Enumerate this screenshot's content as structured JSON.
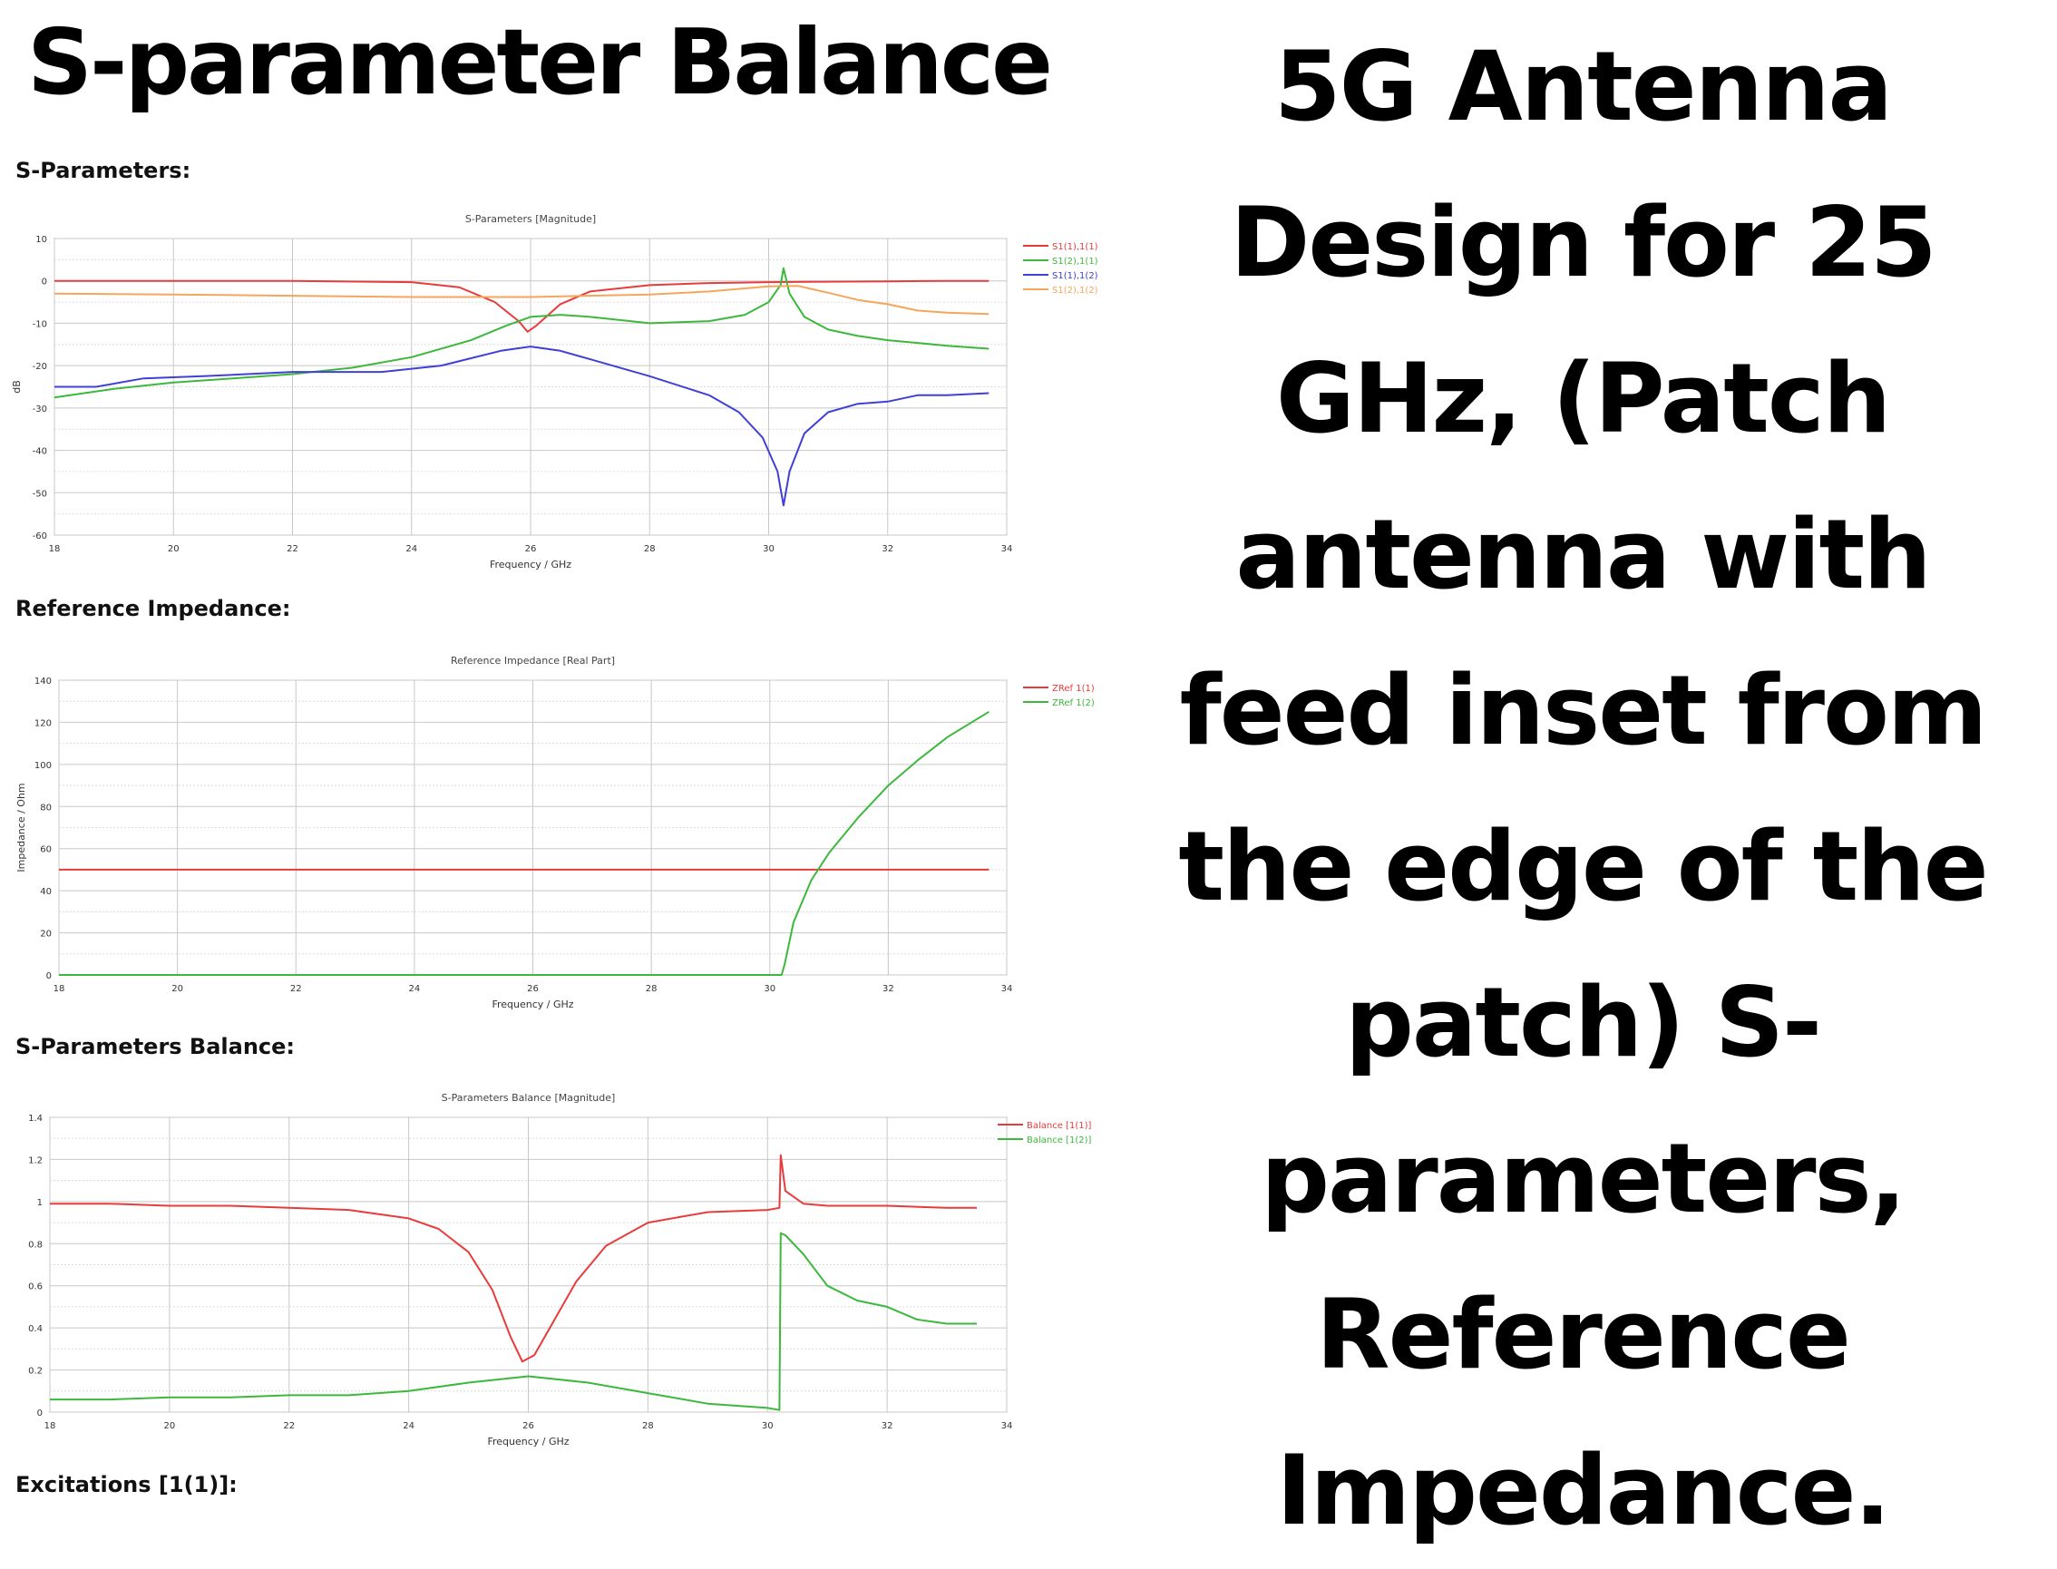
{
  "headline_left": "S-parameter Balance",
  "headline_right": "5G Antenna Design for 25 GHz, (Patch antenna with feed inset from the edge of the patch) S-parameters, Reference Impedance.",
  "sections": {
    "sparams": "S-Parameters:",
    "refimp": "Reference Impedance:",
    "balance": "S-Parameters Balance:",
    "excitations": "Excitations [1(1)]:"
  },
  "chart_data": [
    {
      "type": "line",
      "title": "S-Parameters [Magnitude]",
      "xlabel": "Frequency / GHz",
      "ylabel": "dB",
      "xlim": [
        18,
        34
      ],
      "ylim": [
        -60,
        10
      ],
      "xticks": [
        18,
        20,
        22,
        24,
        26,
        28,
        30,
        32,
        34
      ],
      "yticks": [
        10,
        0,
        -10,
        -20,
        -30,
        -40,
        -50,
        -60
      ],
      "grid": true,
      "legend": "top-right",
      "series": [
        {
          "name": "S1(1),1(1)",
          "color": "#e83c3c",
          "x": [
            18,
            20,
            22,
            24,
            24.8,
            25.4,
            25.8,
            25.95,
            26.1,
            26.5,
            27,
            28,
            29,
            30,
            31,
            32,
            33,
            33.7
          ],
          "values": [
            0,
            0,
            0,
            -0.3,
            -1.5,
            -5,
            -9.5,
            -12,
            -10.5,
            -5.5,
            -2.5,
            -1,
            -0.5,
            -0.3,
            -0.2,
            -0.1,
            0,
            0
          ]
        },
        {
          "name": "S1(2),1(1)",
          "color": "#3cb83c",
          "x": [
            18,
            19,
            20,
            21,
            22,
            23,
            24,
            25,
            25.6,
            26,
            26.5,
            27,
            28,
            29,
            29.6,
            30,
            30.2,
            30.25,
            30.35,
            30.6,
            31,
            31.5,
            32,
            33,
            33.7
          ],
          "values": [
            -27.5,
            -25.5,
            -24,
            -23,
            -22,
            -20.5,
            -18,
            -14,
            -10.5,
            -8.5,
            -8,
            -8.5,
            -10,
            -9.5,
            -8,
            -5,
            -1,
            3,
            -3,
            -8.5,
            -11.5,
            -13,
            -14,
            -15.3,
            -16
          ]
        },
        {
          "name": "S1(1),1(2)",
          "color": "#4040d8",
          "x": [
            18,
            18.7,
            19.5,
            20.5,
            22,
            23.5,
            24.5,
            25.5,
            26,
            26.5,
            27,
            28,
            29,
            29.5,
            29.9,
            30.15,
            30.25,
            30.35,
            30.6,
            31,
            31.5,
            32,
            32.5,
            33,
            33.7
          ],
          "values": [
            -25,
            -25,
            -23,
            -22.5,
            -21.5,
            -21.5,
            -20,
            -16.5,
            -15.5,
            -16.5,
            -18.5,
            -22.5,
            -27,
            -31,
            -37,
            -45,
            -53,
            -45,
            -36,
            -31,
            -29,
            -28.5,
            -27,
            -27,
            -26.5
          ]
        },
        {
          "name": "S1(2),1(2)",
          "color": "#f5a65a",
          "x": [
            18,
            20,
            22,
            24,
            26,
            28,
            29,
            30,
            30.5,
            31,
            31.5,
            32,
            32.5,
            33,
            33.7
          ],
          "values": [
            -3,
            -3.2,
            -3.5,
            -3.8,
            -3.8,
            -3.2,
            -2.5,
            -1.3,
            -1.2,
            -2.8,
            -4.5,
            -5.5,
            -7,
            -7.5,
            -7.8
          ]
        }
      ]
    },
    {
      "type": "line",
      "title": "Reference Impedance [Real Part]",
      "xlabel": "Frequency / GHz",
      "ylabel": "Impedance / Ohm",
      "xlim": [
        18,
        34
      ],
      "ylim": [
        0,
        140
      ],
      "xticks": [
        18,
        20,
        22,
        24,
        26,
        28,
        30,
        32,
        34
      ],
      "yticks": [
        140,
        120,
        100,
        80,
        60,
        40,
        20,
        0
      ],
      "grid": true,
      "legend": "top-right",
      "series": [
        {
          "name": "ZRef 1(1)",
          "color": "#e83c3c",
          "x": [
            18,
            33.7
          ],
          "values": [
            50,
            50
          ]
        },
        {
          "name": "ZRef 1(2)",
          "color": "#3cb83c",
          "x": [
            18,
            30.2,
            30.25,
            30.4,
            30.7,
            31,
            31.5,
            32,
            32.5,
            33,
            33.7
          ],
          "values": [
            0,
            0,
            5,
            25,
            45,
            58,
            75,
            90,
            102,
            113,
            125
          ]
        }
      ]
    },
    {
      "type": "line",
      "title": "S-Parameters Balance [Magnitude]",
      "xlabel": "Frequency / GHz",
      "ylabel": "",
      "xlim": [
        18,
        34
      ],
      "ylim": [
        0,
        1.4
      ],
      "xticks": [
        18,
        20,
        22,
        24,
        26,
        28,
        30,
        32,
        34
      ],
      "yticks": [
        1.4,
        1.2,
        1,
        0.8,
        0.6,
        0.4,
        0.2,
        0
      ],
      "grid": true,
      "legend": "top-right",
      "series": [
        {
          "name": "Balance [1(1)]",
          "color": "#e83c3c",
          "x": [
            18,
            19,
            20,
            21,
            22,
            23,
            24,
            24.5,
            25,
            25.4,
            25.7,
            25.9,
            26.1,
            26.4,
            26.8,
            27.3,
            28,
            29,
            30,
            30.2,
            30.22,
            30.3,
            30.6,
            31,
            32,
            33,
            33.5
          ],
          "values": [
            0.99,
            0.99,
            0.98,
            0.98,
            0.97,
            0.96,
            0.92,
            0.87,
            0.76,
            0.58,
            0.36,
            0.24,
            0.27,
            0.42,
            0.62,
            0.79,
            0.9,
            0.95,
            0.96,
            0.97,
            1.22,
            1.05,
            0.99,
            0.98,
            0.98,
            0.97,
            0.97
          ]
        },
        {
          "name": "Balance [1(2)]",
          "color": "#3cb83c",
          "x": [
            18,
            19,
            20,
            21,
            22,
            23,
            24,
            25,
            26,
            27,
            28,
            29,
            30,
            30.2,
            30.22,
            30.3,
            30.6,
            31,
            31.5,
            32,
            32.5,
            33,
            33.5
          ],
          "values": [
            0.06,
            0.06,
            0.07,
            0.07,
            0.08,
            0.08,
            0.1,
            0.14,
            0.17,
            0.14,
            0.09,
            0.04,
            0.02,
            0.01,
            0.85,
            0.84,
            0.75,
            0.6,
            0.53,
            0.5,
            0.44,
            0.42,
            0.42
          ]
        }
      ]
    }
  ]
}
